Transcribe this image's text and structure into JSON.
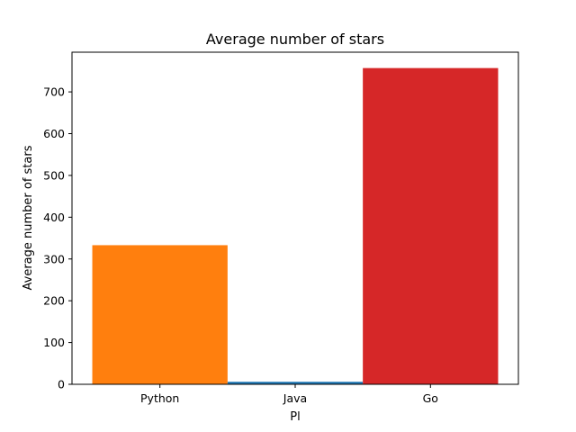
{
  "chart_data": {
    "type": "bar",
    "title": "Average number of stars",
    "xlabel": "Pl",
    "ylabel": "Average number of stars",
    "categories": [
      "Python",
      "Java",
      "Go"
    ],
    "values": [
      333,
      6,
      757
    ],
    "colors": [
      "#ff7f0e",
      "#1f77b4",
      "#d62728"
    ],
    "ylim": [
      0,
      795
    ],
    "yticks": [
      0,
      100,
      200,
      300,
      400,
      500,
      600,
      700
    ],
    "grid": false,
    "legend": "none"
  }
}
